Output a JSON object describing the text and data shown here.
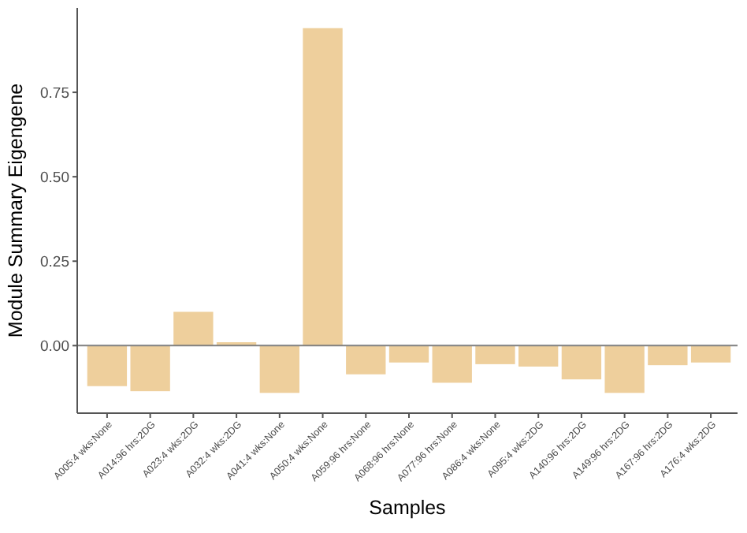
{
  "chart_data": {
    "type": "bar",
    "xlabel": "Samples",
    "ylabel": "Module Summary Eigengene",
    "categories": [
      "A005:4 wks:None",
      "A014:96 hrs:2DG",
      "A023:4 wks:2DG",
      "A032:4 wks:2DG",
      "A041:4 wks:None",
      "A050:4 wks:None",
      "A059:96 hrs:None",
      "A068:96 hrs:None",
      "A077:96 hrs:None",
      "A086:4 wks:None",
      "A095:4 wks:2DG",
      "A140:96 hrs:2DG",
      "A149:96 hrs:2DG",
      "A167:96 hrs:2DG",
      "A176:4 wks:2DG"
    ],
    "values": [
      -0.12,
      -0.135,
      0.1,
      0.01,
      -0.14,
      0.94,
      -0.085,
      -0.05,
      -0.11,
      -0.055,
      -0.062,
      -0.1,
      -0.14,
      -0.058,
      -0.05
    ],
    "color": "#eecf9c",
    "ylim": [
      -0.2,
      1.0
    ],
    "yticks": [
      {
        "value": 0,
        "label": "0.00"
      },
      {
        "value": 0.25,
        "label": "0.25"
      },
      {
        "value": 0.5,
        "label": "0.50"
      },
      {
        "value": 0.75,
        "label": "0.75"
      }
    ],
    "ref_lines": [
      {
        "axis": "y",
        "value": 0,
        "color": "#808080"
      }
    ],
    "grid": false
  }
}
